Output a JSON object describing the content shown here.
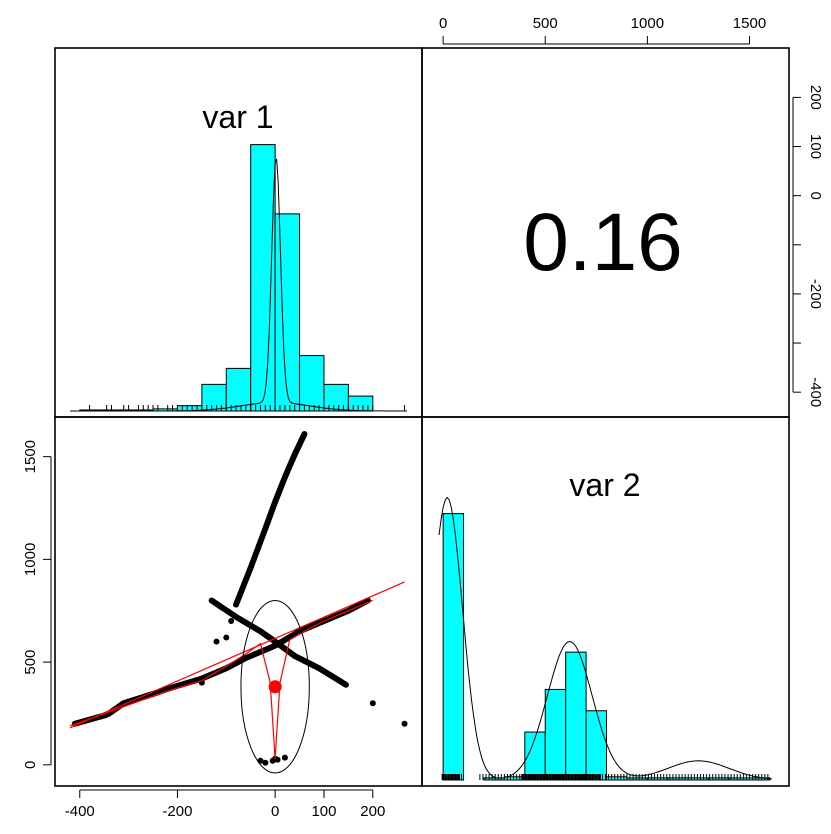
{
  "chart_data": {
    "type": "scatter",
    "layout": "pairs-matrix",
    "variables": [
      "var 1",
      "var 2"
    ],
    "correlation_text": "0.16",
    "axes": {
      "var1": {
        "range": [
          -420,
          270
        ],
        "ticks": [
          -400,
          -200,
          0,
          100,
          200
        ],
        "tick_labels": [
          "-400",
          "-200",
          "0",
          "100",
          "200"
        ]
      },
      "var1_right": {
        "ticks": [
          200,
          100,
          0,
          -100,
          -200,
          -300,
          -400
        ],
        "tick_labels": [
          "200",
          "100",
          "0",
          "",
          "-200",
          "",
          "-400"
        ]
      },
      "var2": {
        "range": [
          -30,
          1620
        ],
        "ticks": [
          0,
          500,
          1000,
          1500
        ],
        "tick_labels": [
          "0",
          "500",
          "1000",
          "1500"
        ]
      }
    },
    "colors": {
      "hist_fill": "#00FFFF",
      "regression": "#FF0000",
      "points": "#000000",
      "density": "#000000",
      "centroid": "#FF0000"
    },
    "var1_histogram": {
      "breaks": [
        -400,
        -350,
        -300,
        -250,
        -200,
        -150,
        -100,
        -50,
        0,
        50,
        100,
        150,
        200
      ],
      "counts": [
        1,
        1,
        1,
        2,
        5,
        25,
        40,
        250,
        185,
        52,
        25,
        14,
        6
      ],
      "ylim": [
        0,
        290
      ]
    },
    "var2_histogram": {
      "breaks": [
        0,
        100,
        200,
        300,
        400,
        500,
        600,
        700,
        800,
        900,
        1000,
        1100,
        1200,
        1300,
        1400,
        1500,
        1600
      ],
      "counts": [
        250,
        0,
        2,
        3,
        45,
        85,
        120,
        65,
        3,
        2,
        2,
        2,
        2,
        2,
        2,
        2
      ],
      "ylim": [
        0,
        290
      ]
    },
    "scatter": {
      "series": [
        {
          "x": [
            -410,
            -350,
            -340,
            -310,
            -270,
            -250,
            -220,
            -150,
            -100,
            -60,
            0,
            50,
            100,
            150,
            190
          ],
          "y": [
            200,
            240,
            250,
            300,
            330,
            345,
            370,
            420,
            470,
            520,
            580,
            650,
            700,
            750,
            800
          ]
        },
        {
          "x": [
            -80,
            -50,
            -20,
            0,
            20,
            40,
            60
          ],
          "y": [
            780,
            960,
            1150,
            1280,
            1400,
            1510,
            1610
          ]
        },
        {
          "x": [
            -130,
            -80,
            -30,
            0,
            40,
            90,
            145
          ],
          "y": [
            800,
            720,
            650,
            600,
            530,
            470,
            390
          ]
        },
        {
          "x": [
            -150,
            -120,
            -100,
            -90,
            -30,
            -20,
            -5,
            0,
            5,
            20,
            200,
            265
          ],
          "y": [
            400,
            600,
            620,
            700,
            20,
            10,
            20,
            30,
            25,
            35,
            300,
            200
          ]
        }
      ],
      "centroid": {
        "x": 0,
        "y": 380
      },
      "regression": {
        "x": [
          -420,
          265
        ],
        "y": [
          180,
          890
        ]
      },
      "loess": {
        "x": [
          -420,
          -220,
          -150,
          -100,
          -60,
          -30,
          -10,
          0,
          10,
          30,
          60,
          100,
          150,
          200
        ],
        "y": [
          190,
          360,
          410,
          480,
          540,
          590,
          400,
          30,
          400,
          610,
          650,
          700,
          750,
          800
        ]
      },
      "ellipse": {
        "cx": 0,
        "cy": 380,
        "rx": 70,
        "ry": 420
      }
    }
  }
}
